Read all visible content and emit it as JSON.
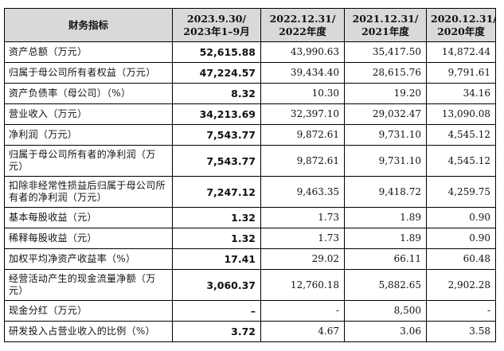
{
  "headers": {
    "metric": "财务指标",
    "col1_line1": "2023.9.30/",
    "col1_line2": "2023年1–9月",
    "col2_line1": "2022.12.31/",
    "col2_line2": "2022年度",
    "col3_line1": "2021.12.31/",
    "col3_line2": "2021年度",
    "col4_line1": "2020.12.31/",
    "col4_line2": "2020年度"
  },
  "rows": [
    {
      "label": "资产总额（万元）",
      "v1": "52,615.88",
      "v2": "43,990.63",
      "v3": "35,417.50",
      "v4": "14,872.44"
    },
    {
      "label": "归属于母公司所有者权益（万元）",
      "v1": "47,224.57",
      "v2": "39,434.40",
      "v3": "28,615.76",
      "v4": "9,791.61"
    },
    {
      "label": "资产负债率（母公司）（%）",
      "v1": "8.32",
      "v2": "10.30",
      "v3": "19.20",
      "v4": "34.16"
    },
    {
      "label": "营业收入（万元）",
      "v1": "34,213.69",
      "v2": "32,397.10",
      "v3": "29,032.47",
      "v4": "13,090.08"
    },
    {
      "label": "净利润（万元）",
      "v1": "7,543.77",
      "v2": "9,872.61",
      "v3": "9,731.10",
      "v4": "4,545.12"
    },
    {
      "label": "归属于母公司所有者的净利润（万元）",
      "v1": "7,543.77",
      "v2": "9,872.61",
      "v3": "9,731.10",
      "v4": "4,545.12"
    },
    {
      "label": "扣除非经常性损益后归属于母公司所有者的净利润（万元）",
      "v1": "7,247.12",
      "v2": "9,463.35",
      "v3": "9,418.72",
      "v4": "4,259.75"
    },
    {
      "label": "基本每股收益（元）",
      "v1": "1.32",
      "v2": "1.73",
      "v3": "1.89",
      "v4": "0.90"
    },
    {
      "label": "稀释每股收益（元）",
      "v1": "1.32",
      "v2": "1.73",
      "v3": "1.89",
      "v4": "0.90"
    },
    {
      "label": "加权平均净资产收益率（%）",
      "v1": "17.41",
      "v2": "29.02",
      "v3": "66.11",
      "v4": "60.48"
    },
    {
      "label": "经营活动产生的现金流量净额（万元）",
      "v1": "3,060.37",
      "v2": "12,760.18",
      "v3": "5,882.65",
      "v4": "2,902.28"
    },
    {
      "label": "现金分红（万元）",
      "v1": "–",
      "v2": "-",
      "v3": "8,500",
      "v4": "-"
    },
    {
      "label": "研发投入占营业收入的比例（%）",
      "v1": "3.72",
      "v2": "4.67",
      "v3": "3.06",
      "v4": "3.58"
    }
  ]
}
